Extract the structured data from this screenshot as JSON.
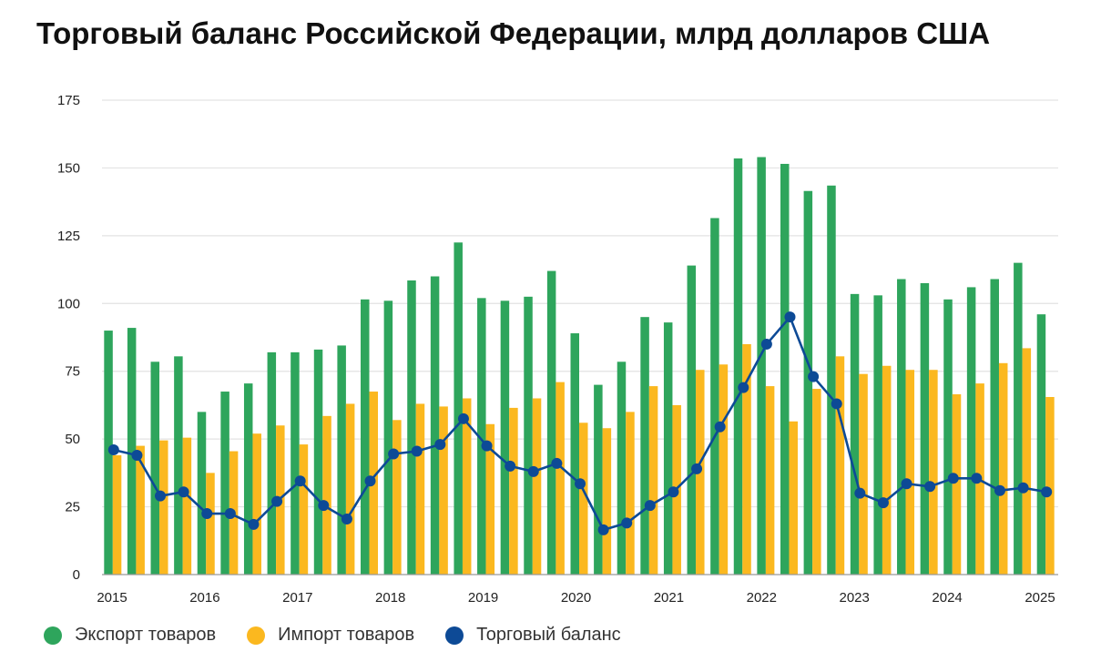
{
  "chart_data": {
    "type": "bar",
    "title": "Торговый баланс Российской Федерации, млрд долларов США",
    "xlabel": "",
    "ylabel": "",
    "ylim": [
      0,
      175
    ],
    "yticks": [
      0,
      25,
      50,
      75,
      100,
      125,
      150,
      175
    ],
    "x_tick_labels": [
      "2015",
      "2016",
      "2017",
      "2018",
      "2019",
      "2020",
      "2021",
      "2022",
      "2023",
      "2024",
      "2025"
    ],
    "grid": true,
    "legend_position": "bottom-left",
    "series": [
      {
        "name": "Экспорт товаров",
        "type": "bar",
        "color": "#2ea55c",
        "values": [
          90,
          91,
          78.5,
          80.5,
          60,
          67.5,
          70.5,
          82,
          82,
          83,
          84.5,
          101.5,
          101,
          108.5,
          110,
          122.5,
          102,
          101,
          102.5,
          112,
          89,
          70,
          78.5,
          95,
          93,
          114,
          131.5,
          153.5,
          154,
          151.5,
          141.5,
          143.5,
          103.5,
          103,
          109,
          107.5,
          101.5,
          106,
          109,
          115,
          96
        ]
      },
      {
        "name": "Импорт товаров",
        "type": "bar",
        "color": "#fbb81f",
        "values": [
          44,
          47.5,
          49.5,
          50.5,
          37.5,
          45.5,
          52,
          55,
          48,
          58.5,
          63,
          67.5,
          57,
          63,
          62,
          65,
          55.5,
          61.5,
          65,
          71,
          56,
          54,
          60,
          69.5,
          62.5,
          75.5,
          77.5,
          85,
          69.5,
          56.5,
          68.5,
          80.5,
          74,
          77,
          75.5,
          75.5,
          66.5,
          70.5,
          78,
          83.5,
          65.5
        ]
      },
      {
        "name": "Торговый баланс",
        "type": "line",
        "color": "#0d4a96",
        "values": [
          46,
          44,
          29,
          30.5,
          22.5,
          22.5,
          18.5,
          27,
          34.5,
          25.5,
          20.5,
          34.5,
          44.5,
          45.5,
          48,
          57.5,
          47.5,
          40,
          38,
          41,
          33.5,
          16.5,
          19,
          25.5,
          30.5,
          39,
          54.5,
          69,
          85,
          95,
          73,
          63,
          30,
          26.5,
          33.5,
          32.5,
          35.5,
          35.5,
          31,
          32,
          30.5
        ]
      }
    ]
  }
}
